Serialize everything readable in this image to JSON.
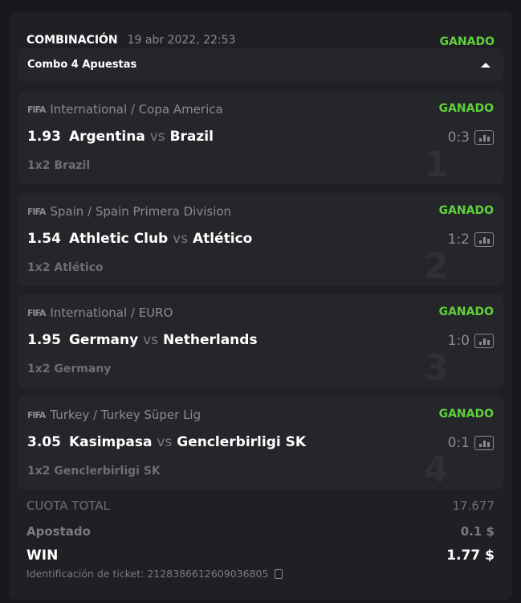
{
  "header": {
    "title": "COMBINACIÓN",
    "date": "19 abr 2022, 22:53",
    "status": "GANADO"
  },
  "combo": {
    "label": "Combo 4 Apuestas",
    "expanded": true
  },
  "bets": [
    {
      "num": "1",
      "league": "International / Copa America",
      "status": "GANADO",
      "odds": "1.93",
      "home": "Argentina",
      "vs": "vs",
      "away": "Brazil",
      "score": "0:3",
      "market": "1x2 Brazil"
    },
    {
      "num": "2",
      "league": "Spain / Spain Primera Division",
      "status": "GANADO",
      "odds": "1.54",
      "home": "Athletic Club",
      "vs": "vs",
      "away": "Atlético",
      "score": "1:2",
      "market": "1x2 Atlético"
    },
    {
      "num": "3",
      "league": "International / EURO",
      "status": "GANADO",
      "odds": "1.95",
      "home": "Germany",
      "vs": "vs",
      "away": "Netherlands",
      "score": "1:0",
      "market": "1x2 Germany"
    },
    {
      "num": "4",
      "league": "Turkey / Turkey Süper Lig",
      "status": "GANADO",
      "odds": "3.05",
      "home": "Kasimpasa",
      "vs": "vs",
      "away": "Genclerbirligi SK",
      "score": "0:1",
      "market": "1x2 Genclerbirligi SK"
    }
  ],
  "sport_logo": "FIFA",
  "summary": {
    "total_odds_label": "CUOTA TOTAL",
    "total_odds": "17.677",
    "staked_label": "Apostado",
    "staked": "0.1 $",
    "win_label": "WIN",
    "win": "1.77 $",
    "ticket_label": "Identificación de ticket: 2128386612609036805"
  },
  "colors": {
    "won": "#5fd13a",
    "background": "#17181b",
    "card": "#1f2023"
  }
}
